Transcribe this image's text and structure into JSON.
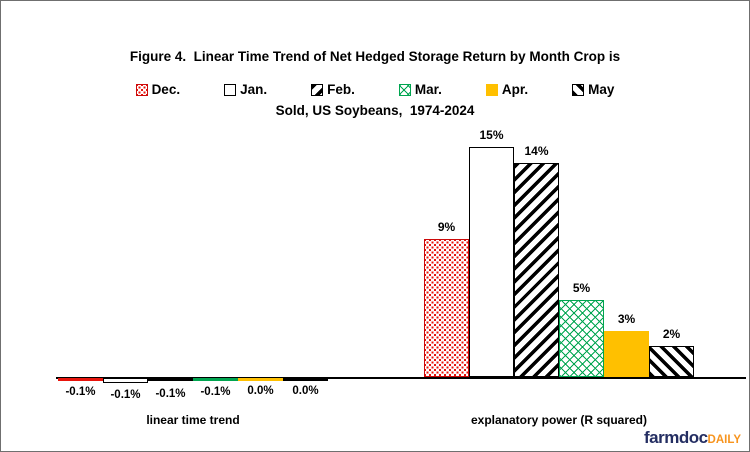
{
  "title": {
    "line1": "Figure 4.  Linear Time Trend of Net Hedged Storage Return by Month Crop is",
    "line2": "Sold, US Soybeans,  1974-2024"
  },
  "chart_data": {
    "type": "bar",
    "title": "Figure 4. Linear Time Trend of Net Hedged Storage Return by Month Crop is Sold, US Soybeans, 1974-2024",
    "categories": [
      "linear time trend",
      "explanatory power (R squared)"
    ],
    "unit": "%",
    "legend_position": "top",
    "y_axis_visible": false,
    "series": [
      {
        "name": "Dec.",
        "pattern": "red-dots",
        "color": "#e8140c",
        "values": [
          -0.1,
          9
        ],
        "labels": [
          "-0.1%",
          "9%"
        ]
      },
      {
        "name": "Jan.",
        "pattern": "white",
        "color": "#ffffff",
        "values": [
          -0.1,
          15
        ],
        "labels": [
          "-0.1%",
          "15%"
        ]
      },
      {
        "name": "Feb.",
        "pattern": "hatch-fwd",
        "color": "#000000",
        "values": [
          -0.1,
          14
        ],
        "labels": [
          "-0.1%",
          "14%"
        ]
      },
      {
        "name": "Mar.",
        "pattern": "green-lattice",
        "color": "#00a550",
        "values": [
          -0.1,
          5
        ],
        "labels": [
          "-0.1%",
          "5%"
        ]
      },
      {
        "name": "Apr.",
        "pattern": "solid-gold",
        "color": "#ffc000",
        "values": [
          0.0,
          3
        ],
        "labels": [
          "0.0%",
          "3%"
        ]
      },
      {
        "name": "May",
        "pattern": "hatch-back",
        "color": "#000000",
        "values": [
          0.0,
          2
        ],
        "labels": [
          "0.0%",
          "2%"
        ]
      }
    ]
  },
  "logo": {
    "farmdoc": "farmdoc",
    "daily": "DAILY"
  }
}
